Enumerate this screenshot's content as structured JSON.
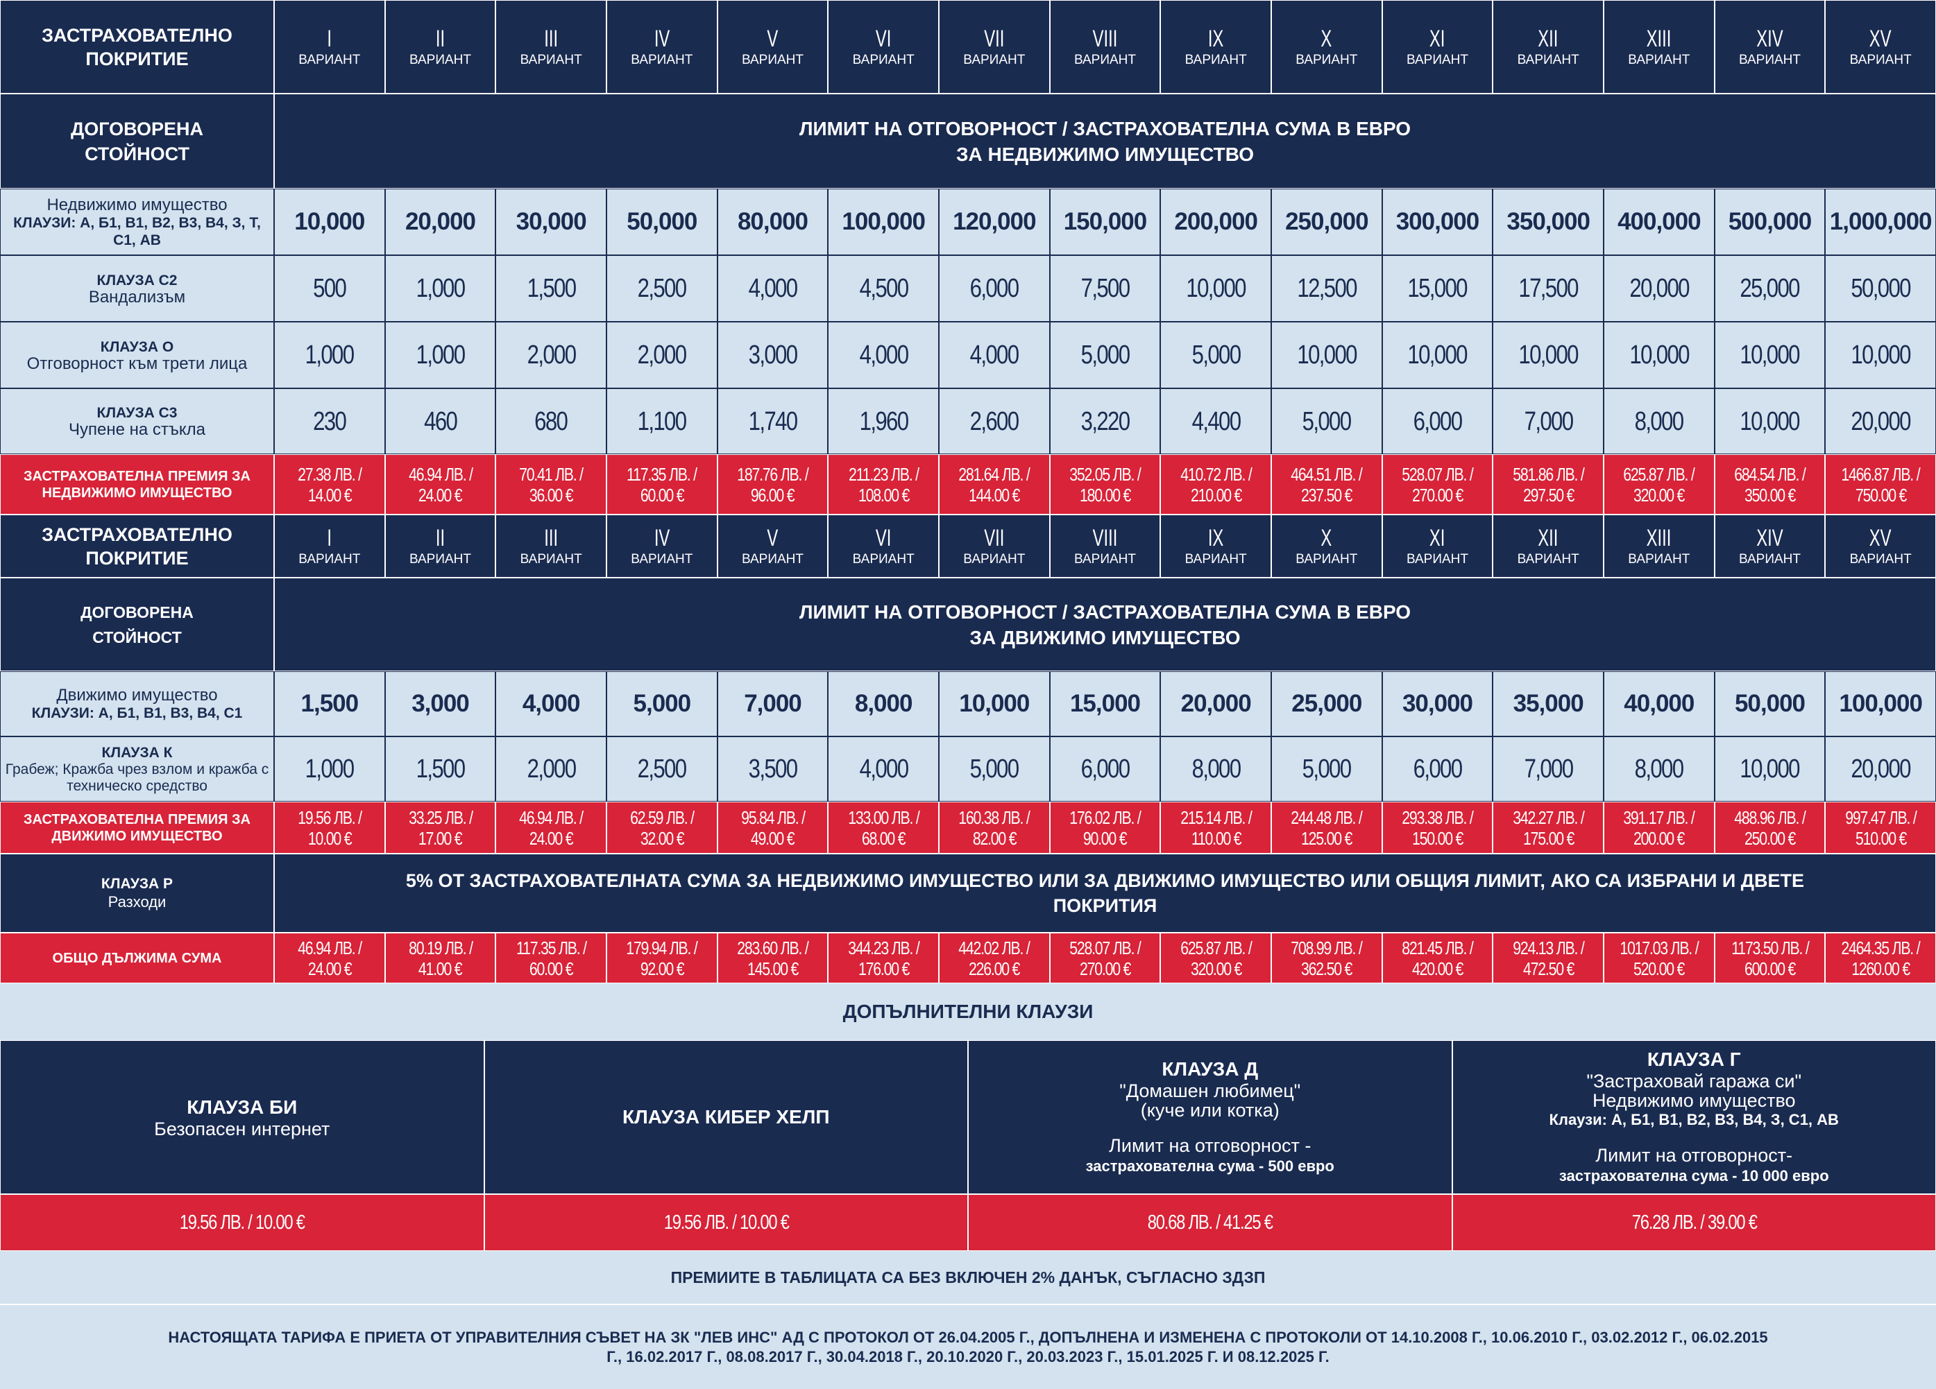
{
  "header": {
    "coverage_label": "ЗАСТРАХОВАТЕЛНО ПОКРИТИЕ",
    "variant_word": "ВАРИАНТ",
    "variants": [
      "I",
      "II",
      "III",
      "IV",
      "V",
      "VI",
      "VII",
      "VIII",
      "IX",
      "X",
      "XI",
      "XII",
      "XIII",
      "XIV",
      "XV"
    ]
  },
  "immovable": {
    "agreed_value": "ДОГОВОРЕНА СТОЙНОСТ",
    "limit_title": "ЛИМИТ НА ОТГОВОРНОСТ / ЗАСТРАХОВАТЕЛНА СУМА В ЕВРО",
    "limit_subtitle": "ЗА НЕДВИЖИМО ИМУЩЕСТВО",
    "rows": [
      {
        "title": "Недвижимо имущество",
        "subtitle": "КЛАУЗИ: А, Б1, В1, В2, В3, В4, З, Т, С1, АВ",
        "values": [
          "10,000",
          "20,000",
          "30,000",
          "50,000",
          "80,000",
          "100,000",
          "120,000",
          "150,000",
          "200,000",
          "250,000",
          "300,000",
          "350,000",
          "400,000",
          "500,000",
          "1,000,000"
        ]
      },
      {
        "title": "КЛАУЗА С2",
        "subtitle": "Вандализъм",
        "values": [
          "500",
          "1,000",
          "1,500",
          "2,500",
          "4,000",
          "4,500",
          "6,000",
          "7,500",
          "10,000",
          "12,500",
          "15,000",
          "17,500",
          "20,000",
          "25,000",
          "50,000"
        ]
      },
      {
        "title": "КЛАУЗА О",
        "subtitle": "Отговорност към трети лица",
        "values": [
          "1,000",
          "1,000",
          "2,000",
          "2,000",
          "3,000",
          "4,000",
          "4,000",
          "5,000",
          "5,000",
          "10,000",
          "10,000",
          "10,000",
          "10,000",
          "10,000",
          "10,000"
        ]
      },
      {
        "title": "КЛАУЗА С3",
        "subtitle": "Чупене на стъкла",
        "values": [
          "230",
          "460",
          "680",
          "1,100",
          "1,740",
          "1,960",
          "2,600",
          "3,220",
          "4,400",
          "5,000",
          "6,000",
          "7,000",
          "8,000",
          "10,000",
          "20,000"
        ]
      }
    ],
    "premium": {
      "label": "ЗАСТРАХОВАТЕЛНА ПРЕМИЯ ЗА НЕДВИЖИМО ИМУЩЕСТВО",
      "values": [
        {
          "bgn": "27.38 ЛВ. /",
          "eur": "14.00 €"
        },
        {
          "bgn": "46.94 ЛВ. /",
          "eur": "24.00 €"
        },
        {
          "bgn": "70.41 ЛВ. /",
          "eur": "36.00 €"
        },
        {
          "bgn": "117.35 ЛВ. /",
          "eur": "60.00 €"
        },
        {
          "bgn": "187.76 ЛВ. /",
          "eur": "96.00 €"
        },
        {
          "bgn": "211.23 ЛВ. /",
          "eur": "108.00 €"
        },
        {
          "bgn": "281.64 ЛВ. /",
          "eur": "144.00 €"
        },
        {
          "bgn": "352.05 ЛВ. /",
          "eur": "180.00 €"
        },
        {
          "bgn": "410.72 ЛВ. /",
          "eur": "210.00 €"
        },
        {
          "bgn": "464.51 ЛВ. /",
          "eur": "237.50 €"
        },
        {
          "bgn": "528.07 ЛВ. /",
          "eur": "270.00 €"
        },
        {
          "bgn": "581.86 ЛВ. /",
          "eur": "297.50 €"
        },
        {
          "bgn": "625.87 ЛВ. /",
          "eur": "320.00 €"
        },
        {
          "bgn": "684.54 ЛВ. /",
          "eur": "350.00 €"
        },
        {
          "bgn": "1466.87 ЛВ. /",
          "eur": "750.00 €"
        }
      ]
    }
  },
  "movable": {
    "agreed_value": "ДОГОВОРЕНА СТОЙНОСТ",
    "limit_title": "ЛИМИТ НА ОТГОВОРНОСТ / ЗАСТРАХОВАТЕЛНА СУМА В ЕВРО",
    "limit_subtitle": "ЗА ДВИЖИМО ИМУЩЕСТВО",
    "rows": [
      {
        "title": "Движимо имущество",
        "subtitle": "КЛАУЗИ: А, Б1, В1, В3, В4, С1",
        "values": [
          "1,500",
          "3,000",
          "4,000",
          "5,000",
          "7,000",
          "8,000",
          "10,000",
          "15,000",
          "20,000",
          "25,000",
          "30,000",
          "35,000",
          "40,000",
          "50,000",
          "100,000"
        ]
      },
      {
        "title": "КЛАУЗА К",
        "subtitle": "Грабеж; Кражба чрез взлом и кражба с техническо средство",
        "values": [
          "1,000",
          "1,500",
          "2,000",
          "2,500",
          "3,500",
          "4,000",
          "5,000",
          "6,000",
          "8,000",
          "5,000",
          "6,000",
          "7,000",
          "8,000",
          "10,000",
          "20,000"
        ]
      }
    ],
    "premium": {
      "label": "ЗАСТРАХОВАТЕЛНА ПРЕМИЯ ЗА ДВИЖИМО ИМУЩЕСТВО",
      "values": [
        {
          "bgn": "19.56 ЛВ. /",
          "eur": "10.00 €"
        },
        {
          "bgn": "33.25 ЛВ. /",
          "eur": "17.00 €"
        },
        {
          "bgn": "46.94 ЛВ. /",
          "eur": "24.00 €"
        },
        {
          "bgn": "62.59 ЛВ. /",
          "eur": "32.00 €"
        },
        {
          "bgn": "95.84 ЛВ. /",
          "eur": "49.00 €"
        },
        {
          "bgn": "133.00 ЛВ. /",
          "eur": "68.00 €"
        },
        {
          "bgn": "160.38 ЛВ. /",
          "eur": "82.00 €"
        },
        {
          "bgn": "176.02 ЛВ. /",
          "eur": "90.00 €"
        },
        {
          "bgn": "215.14 ЛВ. /",
          "eur": "110.00 €"
        },
        {
          "bgn": "244.48 ЛВ. /",
          "eur": "125.00 €"
        },
        {
          "bgn": "293.38 ЛВ. /",
          "eur": "150.00 €"
        },
        {
          "bgn": "342.27 ЛВ. /",
          "eur": "175.00 €"
        },
        {
          "bgn": "391.17 ЛВ. /",
          "eur": "200.00 €"
        },
        {
          "bgn": "488.96 ЛВ. /",
          "eur": "250.00 €"
        },
        {
          "bgn": "997.47 ЛВ. /",
          "eur": "510.00 €"
        }
      ]
    }
  },
  "clause_p": {
    "title": "КЛАУЗА Р",
    "subtitle": "Разходи",
    "text": "5% ОТ ЗАСТРАХОВАТЕЛНАТА СУМА ЗА НЕДВИЖИМО ИМУЩЕСТВО ИЛИ ЗА ДВИЖИМО ИМУЩЕСТВО ИЛИ ОБЩИЯ ЛИМИТ, АКО СА ИЗБРАНИ И ДВЕТЕ ПОКРИТИЯ"
  },
  "total": {
    "label": "ОБЩО ДЪЛЖИМА СУМА",
    "values": [
      {
        "bgn": "46.94 ЛВ. /",
        "eur": "24.00 €"
      },
      {
        "bgn": "80.19 ЛВ. /",
        "eur": "41.00 €"
      },
      {
        "bgn": "117.35 ЛВ. /",
        "eur": "60.00 €"
      },
      {
        "bgn": "179.94 ЛВ. /",
        "eur": "92.00 €"
      },
      {
        "bgn": "283.60 ЛВ. /",
        "eur": "145.00 €"
      },
      {
        "bgn": "344.23 ЛВ. /",
        "eur": "176.00 €"
      },
      {
        "bgn": "442.02 ЛВ. /",
        "eur": "226.00 €"
      },
      {
        "bgn": "528.07 ЛВ. /",
        "eur": "270.00 €"
      },
      {
        "bgn": "625.87 ЛВ. /",
        "eur": "320.00 €"
      },
      {
        "bgn": "708.99 ЛВ. /",
        "eur": "362.50 €"
      },
      {
        "bgn": "821.45 ЛВ. /",
        "eur": "420.00 €"
      },
      {
        "bgn": "924.13 ЛВ. /",
        "eur": "472.50 €"
      },
      {
        "bgn": "1017.03 ЛВ. /",
        "eur": "520.00 €"
      },
      {
        "bgn": "1173.50 ЛВ. /",
        "eur": "600.00 €"
      },
      {
        "bgn": "2464.35 ЛВ. /",
        "eur": "1260.00 €"
      }
    ]
  },
  "additional": {
    "title": "ДОПЪЛНИТЕЛНИ КЛАУЗИ",
    "clauses": [
      {
        "title": "КЛАУЗА БИ",
        "lines": [
          "Безопасен интернет"
        ],
        "price": "19.56 ЛВ. / 10.00 €"
      },
      {
        "title": "КЛАУЗА КИБЕР ХЕЛП",
        "price": "19.56 ЛВ. / 10.00 €"
      },
      {
        "title": "КЛАУЗА Д",
        "lines": [
          "\"Домашен любимец\"",
          "(куче или котка)"
        ],
        "limit": [
          "Лимит на отговорност -",
          "застрахователна сума - 500 евро"
        ],
        "price": "80.68 ЛВ. / 41.25 €"
      },
      {
        "title": "КЛАУЗА Г",
        "lines": [
          "\"Застраховай гаража си\"",
          "Недвижимо имущество",
          "Клаузи: А, Б1, В1, В2, В3, В4, З, С1, АВ"
        ],
        "limit": [
          "Лимит на отговорност-",
          "застрахователна сума  -  10 000 евро"
        ],
        "price": "76.28 ЛВ. / 39.00  €"
      }
    ]
  },
  "note": "ПРЕМИИТЕ В ТАБЛИЦАТА СА БЕЗ ВКЛЮЧЕН 2% ДАНЪК, СЪГЛАСНО ЗДЗП",
  "footer": "НАСТОЯЩАТА ТАРИФА Е ПРИЕТА ОТ УПРАВИТЕЛНИЯ СЪВЕТ НА ЗК \"ЛЕВ ИНС\" АД С ПРОТОКОЛ ОТ 26.04.2005 Г., ДОПЪЛНЕНА И ИЗМЕНЕНА  С ПРОТОКОЛИ ОТ 14.10.2008 Г., 10.06.2010 Г., 03.02.2012 Г., 06.02.2015 Г., 16.02.2017 Г., 08.08.2017 Г., 30.04.2018 Г., 20.10.2020 Г., 20.03.2023 Г., 15.01.2025 Г. И 08.12.2025  Г."
}
